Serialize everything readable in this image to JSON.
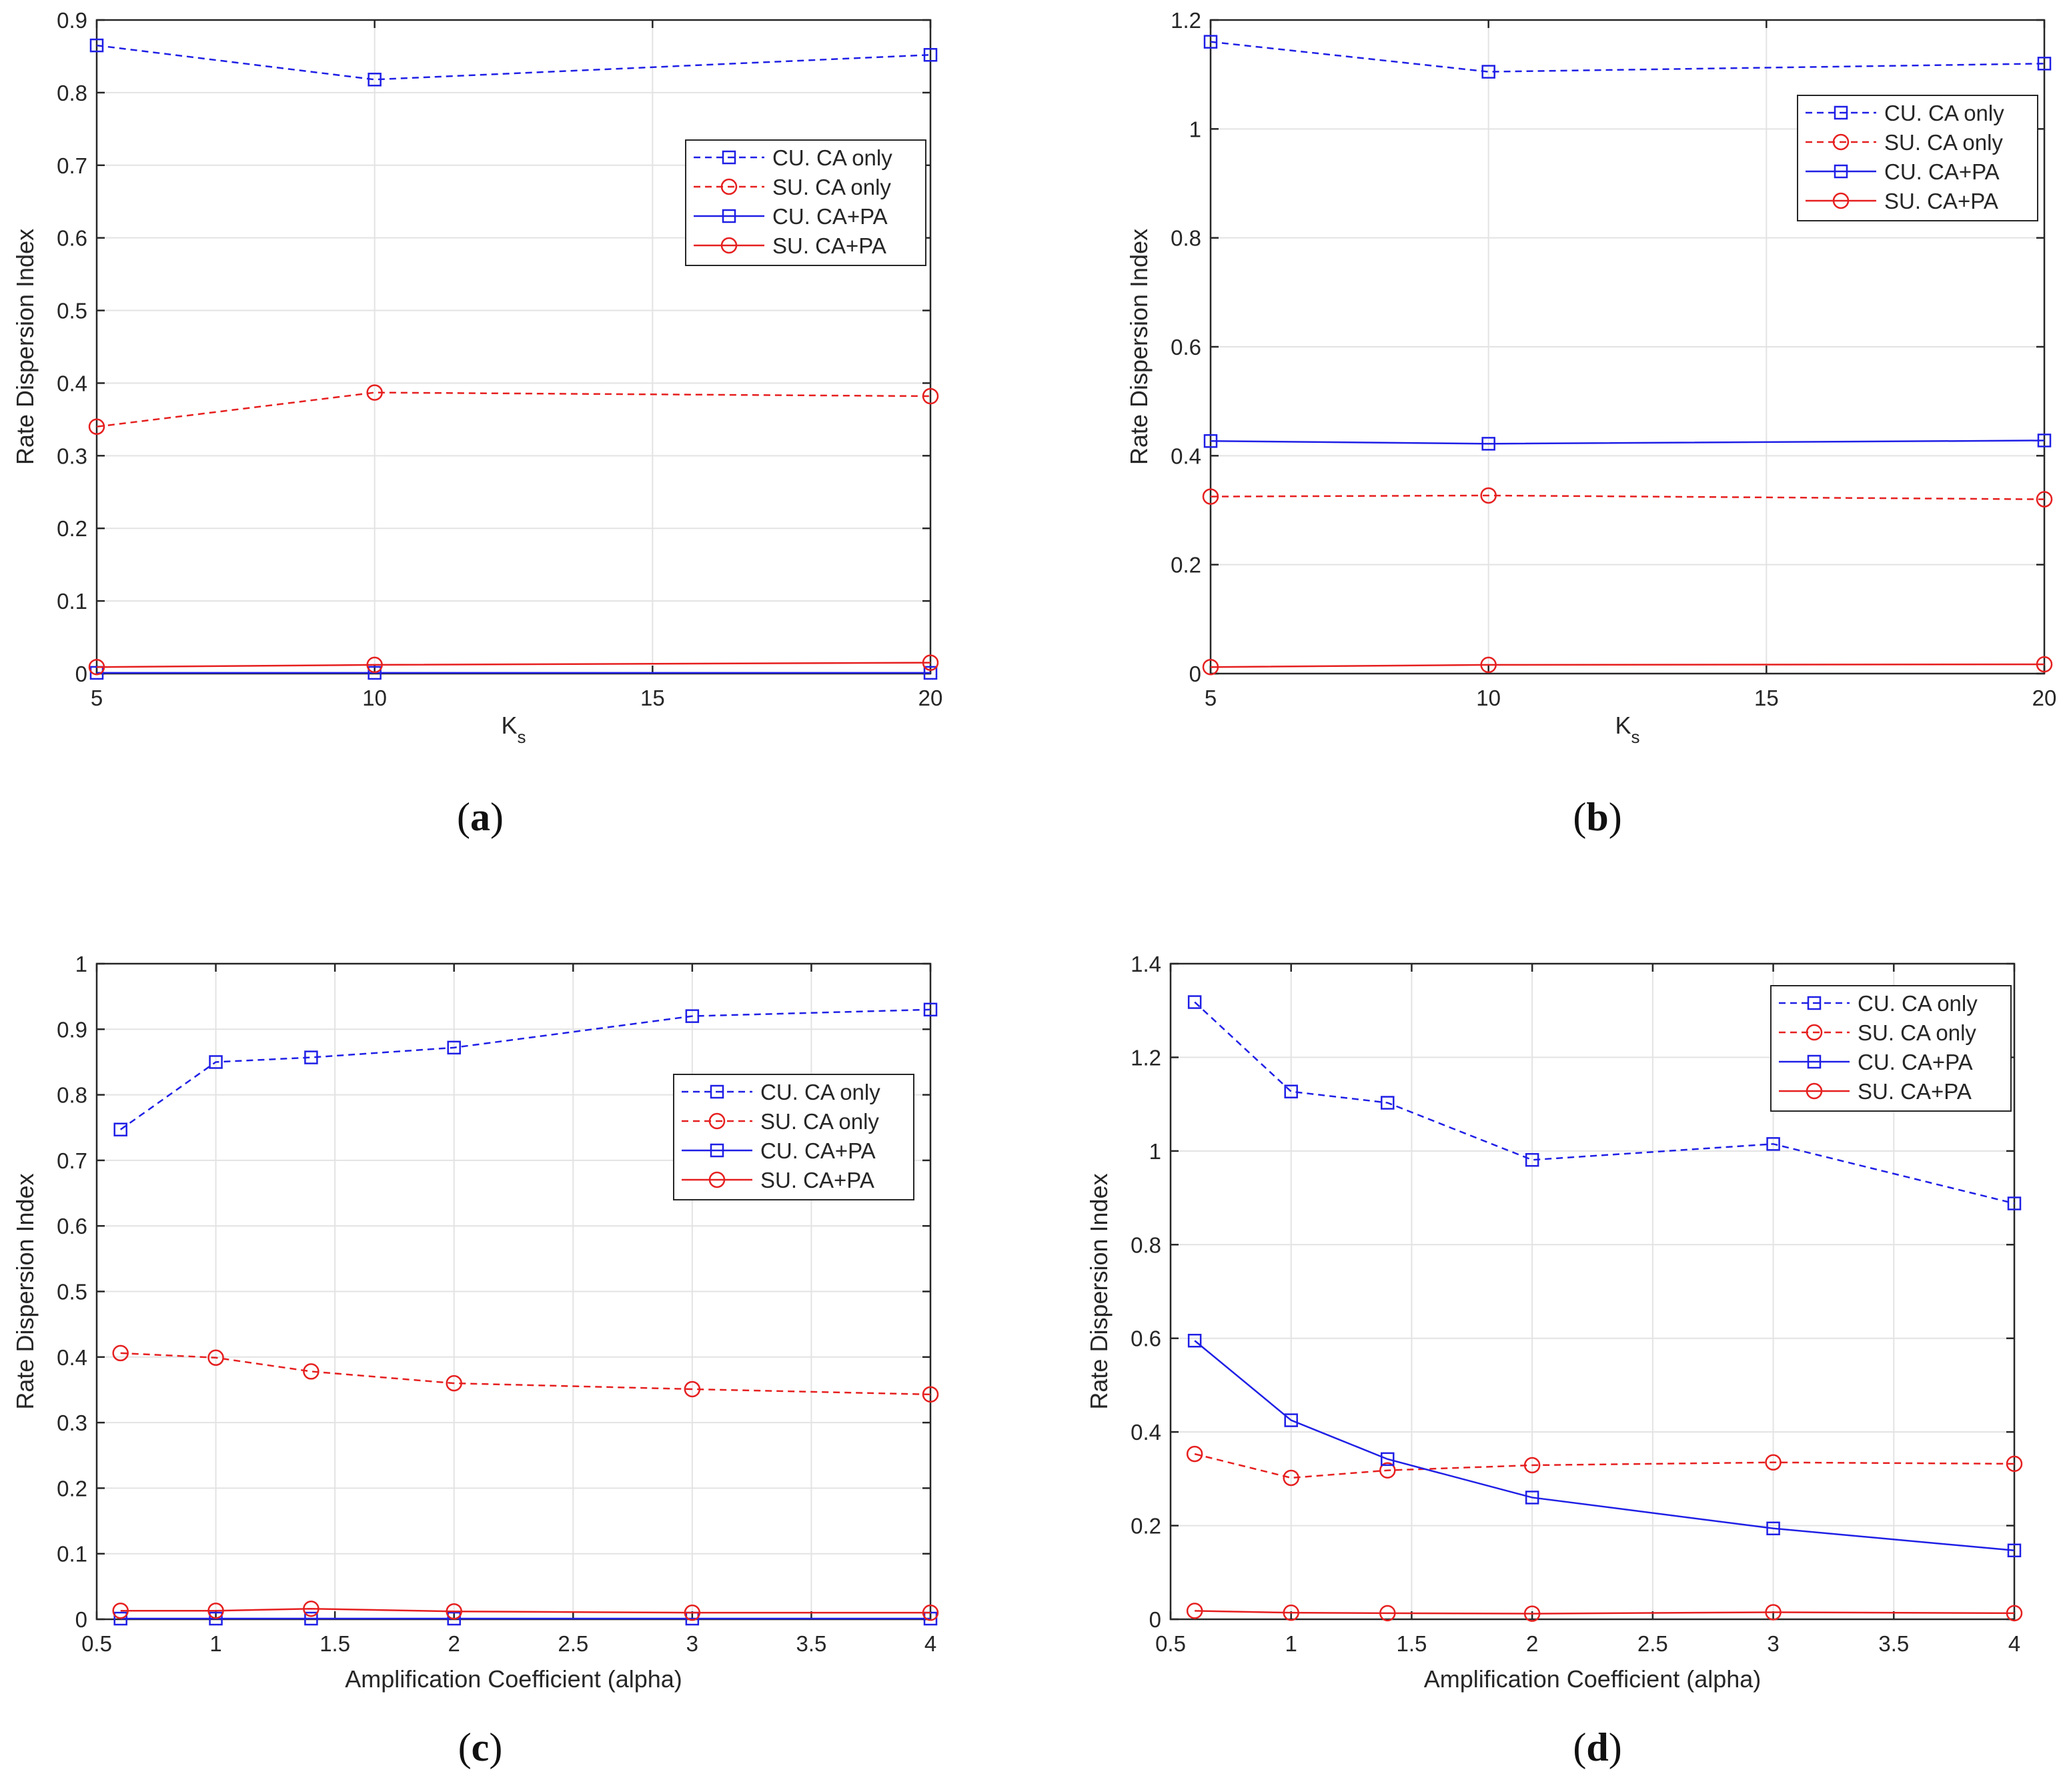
{
  "colors": {
    "blue": "#1f1fe6",
    "red": "#e61f1f",
    "axis": "#262626",
    "grid": "#e3e3e3"
  },
  "chart_data": [
    {
      "type": "line",
      "panel": "a",
      "caption": {
        "open": "(",
        "letter": "a",
        "close": ")"
      },
      "xlabel": "K",
      "xlabel_sub": "s",
      "ylabel": "Rate Dispersion Index",
      "xlim": [
        5,
        20
      ],
      "ylim": [
        0,
        0.9
      ],
      "xticks": [
        5,
        10,
        15,
        20
      ],
      "xtick_labels": [
        "5",
        "10",
        "15",
        "20"
      ],
      "yticks": [
        0,
        0.1,
        0.2,
        0.3,
        0.4,
        0.5,
        0.6,
        0.7,
        0.8,
        0.9
      ],
      "ytick_labels": [
        "0",
        "0.1",
        "0.2",
        "0.3",
        "0.4",
        "0.5",
        "0.6",
        "0.7",
        "0.8",
        "0.9"
      ],
      "x": [
        5,
        10,
        20
      ],
      "legend_position": "upper-right",
      "series": [
        {
          "name": "CU. CA only",
          "color": "blue",
          "dash": true,
          "marker": "square",
          "values": [
            0.865,
            0.818,
            0.852
          ]
        },
        {
          "name": "SU. CA only",
          "color": "red",
          "dash": true,
          "marker": "circle",
          "values": [
            0.34,
            0.387,
            0.382
          ]
        },
        {
          "name": "CU. CA+PA",
          "color": "blue",
          "dash": false,
          "marker": "square",
          "values": [
            0.001,
            0.001,
            0.001
          ]
        },
        {
          "name": "SU. CA+PA",
          "color": "red",
          "dash": false,
          "marker": "circle",
          "values": [
            0.009,
            0.012,
            0.015
          ]
        }
      ]
    },
    {
      "type": "line",
      "panel": "b",
      "caption": {
        "open": "(",
        "letter": "b",
        "close": ")"
      },
      "xlabel": "K",
      "xlabel_sub": "s",
      "ylabel": "Rate Dispersion Index",
      "xlim": [
        5,
        20
      ],
      "ylim": [
        0,
        1.2
      ],
      "xticks": [
        5,
        10,
        15,
        20
      ],
      "xtick_labels": [
        "5",
        "10",
        "15",
        "20"
      ],
      "yticks": [
        0,
        0.2,
        0.4,
        0.6,
        0.8,
        1,
        1.2
      ],
      "ytick_labels": [
        "0",
        "0.2",
        "0.4",
        "0.6",
        "0.8",
        "1",
        "1.2"
      ],
      "x": [
        5,
        10,
        20
      ],
      "legend_position": "upper-right",
      "series": [
        {
          "name": "CU. CA only",
          "color": "blue",
          "dash": true,
          "marker": "square",
          "values": [
            1.16,
            1.105,
            1.12
          ]
        },
        {
          "name": "SU. CA only",
          "color": "red",
          "dash": true,
          "marker": "circle",
          "values": [
            0.325,
            0.327,
            0.32
          ]
        },
        {
          "name": "CU. CA+PA",
          "color": "blue",
          "dash": false,
          "marker": "square",
          "values": [
            0.427,
            0.422,
            0.428
          ]
        },
        {
          "name": "SU. CA+PA",
          "color": "red",
          "dash": false,
          "marker": "circle",
          "values": [
            0.012,
            0.016,
            0.017
          ]
        }
      ]
    },
    {
      "type": "line",
      "panel": "c",
      "caption": {
        "open": "(",
        "letter": "c",
        "close": ")"
      },
      "xlabel": "Amplification Coefficient (alpha)",
      "xlabel_sub": "",
      "ylabel": "Rate Dispersion Index",
      "xlim": [
        0.5,
        4
      ],
      "ylim": [
        0,
        1
      ],
      "xticks": [
        0.5,
        1,
        1.5,
        2,
        2.5,
        3,
        3.5,
        4
      ],
      "xtick_labels": [
        "0.5",
        "1",
        "1.5",
        "2",
        "2.5",
        "3",
        "3.5",
        "4"
      ],
      "yticks": [
        0,
        0.1,
        0.2,
        0.3,
        0.4,
        0.5,
        0.6,
        0.7,
        0.8,
        0.9,
        1
      ],
      "ytick_labels": [
        "0",
        "0.1",
        "0.2",
        "0.3",
        "0.4",
        "0.5",
        "0.6",
        "0.7",
        "0.8",
        "0.9",
        "1"
      ],
      "x": [
        0.6,
        1,
        1.4,
        2,
        3,
        4
      ],
      "legend_position": "middle-right",
      "series": [
        {
          "name": "CU. CA only",
          "color": "blue",
          "dash": true,
          "marker": "square",
          "values": [
            0.747,
            0.85,
            0.857,
            0.872,
            0.92,
            0.93
          ]
        },
        {
          "name": "SU. CA only",
          "color": "red",
          "dash": true,
          "marker": "circle",
          "values": [
            0.406,
            0.399,
            0.378,
            0.36,
            0.351,
            0.343
          ]
        },
        {
          "name": "CU. CA+PA",
          "color": "blue",
          "dash": false,
          "marker": "square",
          "values": [
            0.001,
            0.001,
            0.001,
            0.001,
            0.001,
            0.001
          ]
        },
        {
          "name": "SU. CA+PA",
          "color": "red",
          "dash": false,
          "marker": "circle",
          "values": [
            0.013,
            0.013,
            0.016,
            0.012,
            0.01,
            0.01
          ]
        }
      ]
    },
    {
      "type": "line",
      "panel": "d",
      "caption": {
        "open": "(",
        "letter": "d",
        "close": ")"
      },
      "xlabel": "Amplification Coefficient (alpha)",
      "xlabel_sub": "",
      "ylabel": "Rate Dispersion Index",
      "xlim": [
        0.5,
        4
      ],
      "ylim": [
        0,
        1.4
      ],
      "xticks": [
        0.5,
        1,
        1.5,
        2,
        2.5,
        3,
        3.5,
        4
      ],
      "xtick_labels": [
        "0.5",
        "1",
        "1.5",
        "2",
        "2.5",
        "3",
        "3.5",
        "4"
      ],
      "yticks": [
        0,
        0.2,
        0.4,
        0.6,
        0.8,
        1,
        1.2,
        1.4
      ],
      "ytick_labels": [
        "0",
        "0.2",
        "0.4",
        "0.6",
        "0.8",
        "1",
        "1.2",
        "1.4"
      ],
      "x": [
        0.6,
        1,
        1.4,
        2,
        3,
        4
      ],
      "legend_position": "upper-right",
      "series": [
        {
          "name": "CU. CA only",
          "color": "blue",
          "dash": true,
          "marker": "square",
          "values": [
            1.318,
            1.127,
            1.103,
            0.981,
            1.015,
            0.888
          ]
        },
        {
          "name": "SU. CA only",
          "color": "red",
          "dash": true,
          "marker": "circle",
          "values": [
            0.353,
            0.302,
            0.318,
            0.329,
            0.335,
            0.332
          ]
        },
        {
          "name": "CU. CA+PA",
          "color": "blue",
          "dash": false,
          "marker": "square",
          "values": [
            0.595,
            0.425,
            0.342,
            0.26,
            0.194,
            0.147
          ]
        },
        {
          "name": "SU. CA+PA",
          "color": "red",
          "dash": false,
          "marker": "circle",
          "values": [
            0.018,
            0.014,
            0.013,
            0.012,
            0.015,
            0.013
          ]
        }
      ]
    }
  ]
}
